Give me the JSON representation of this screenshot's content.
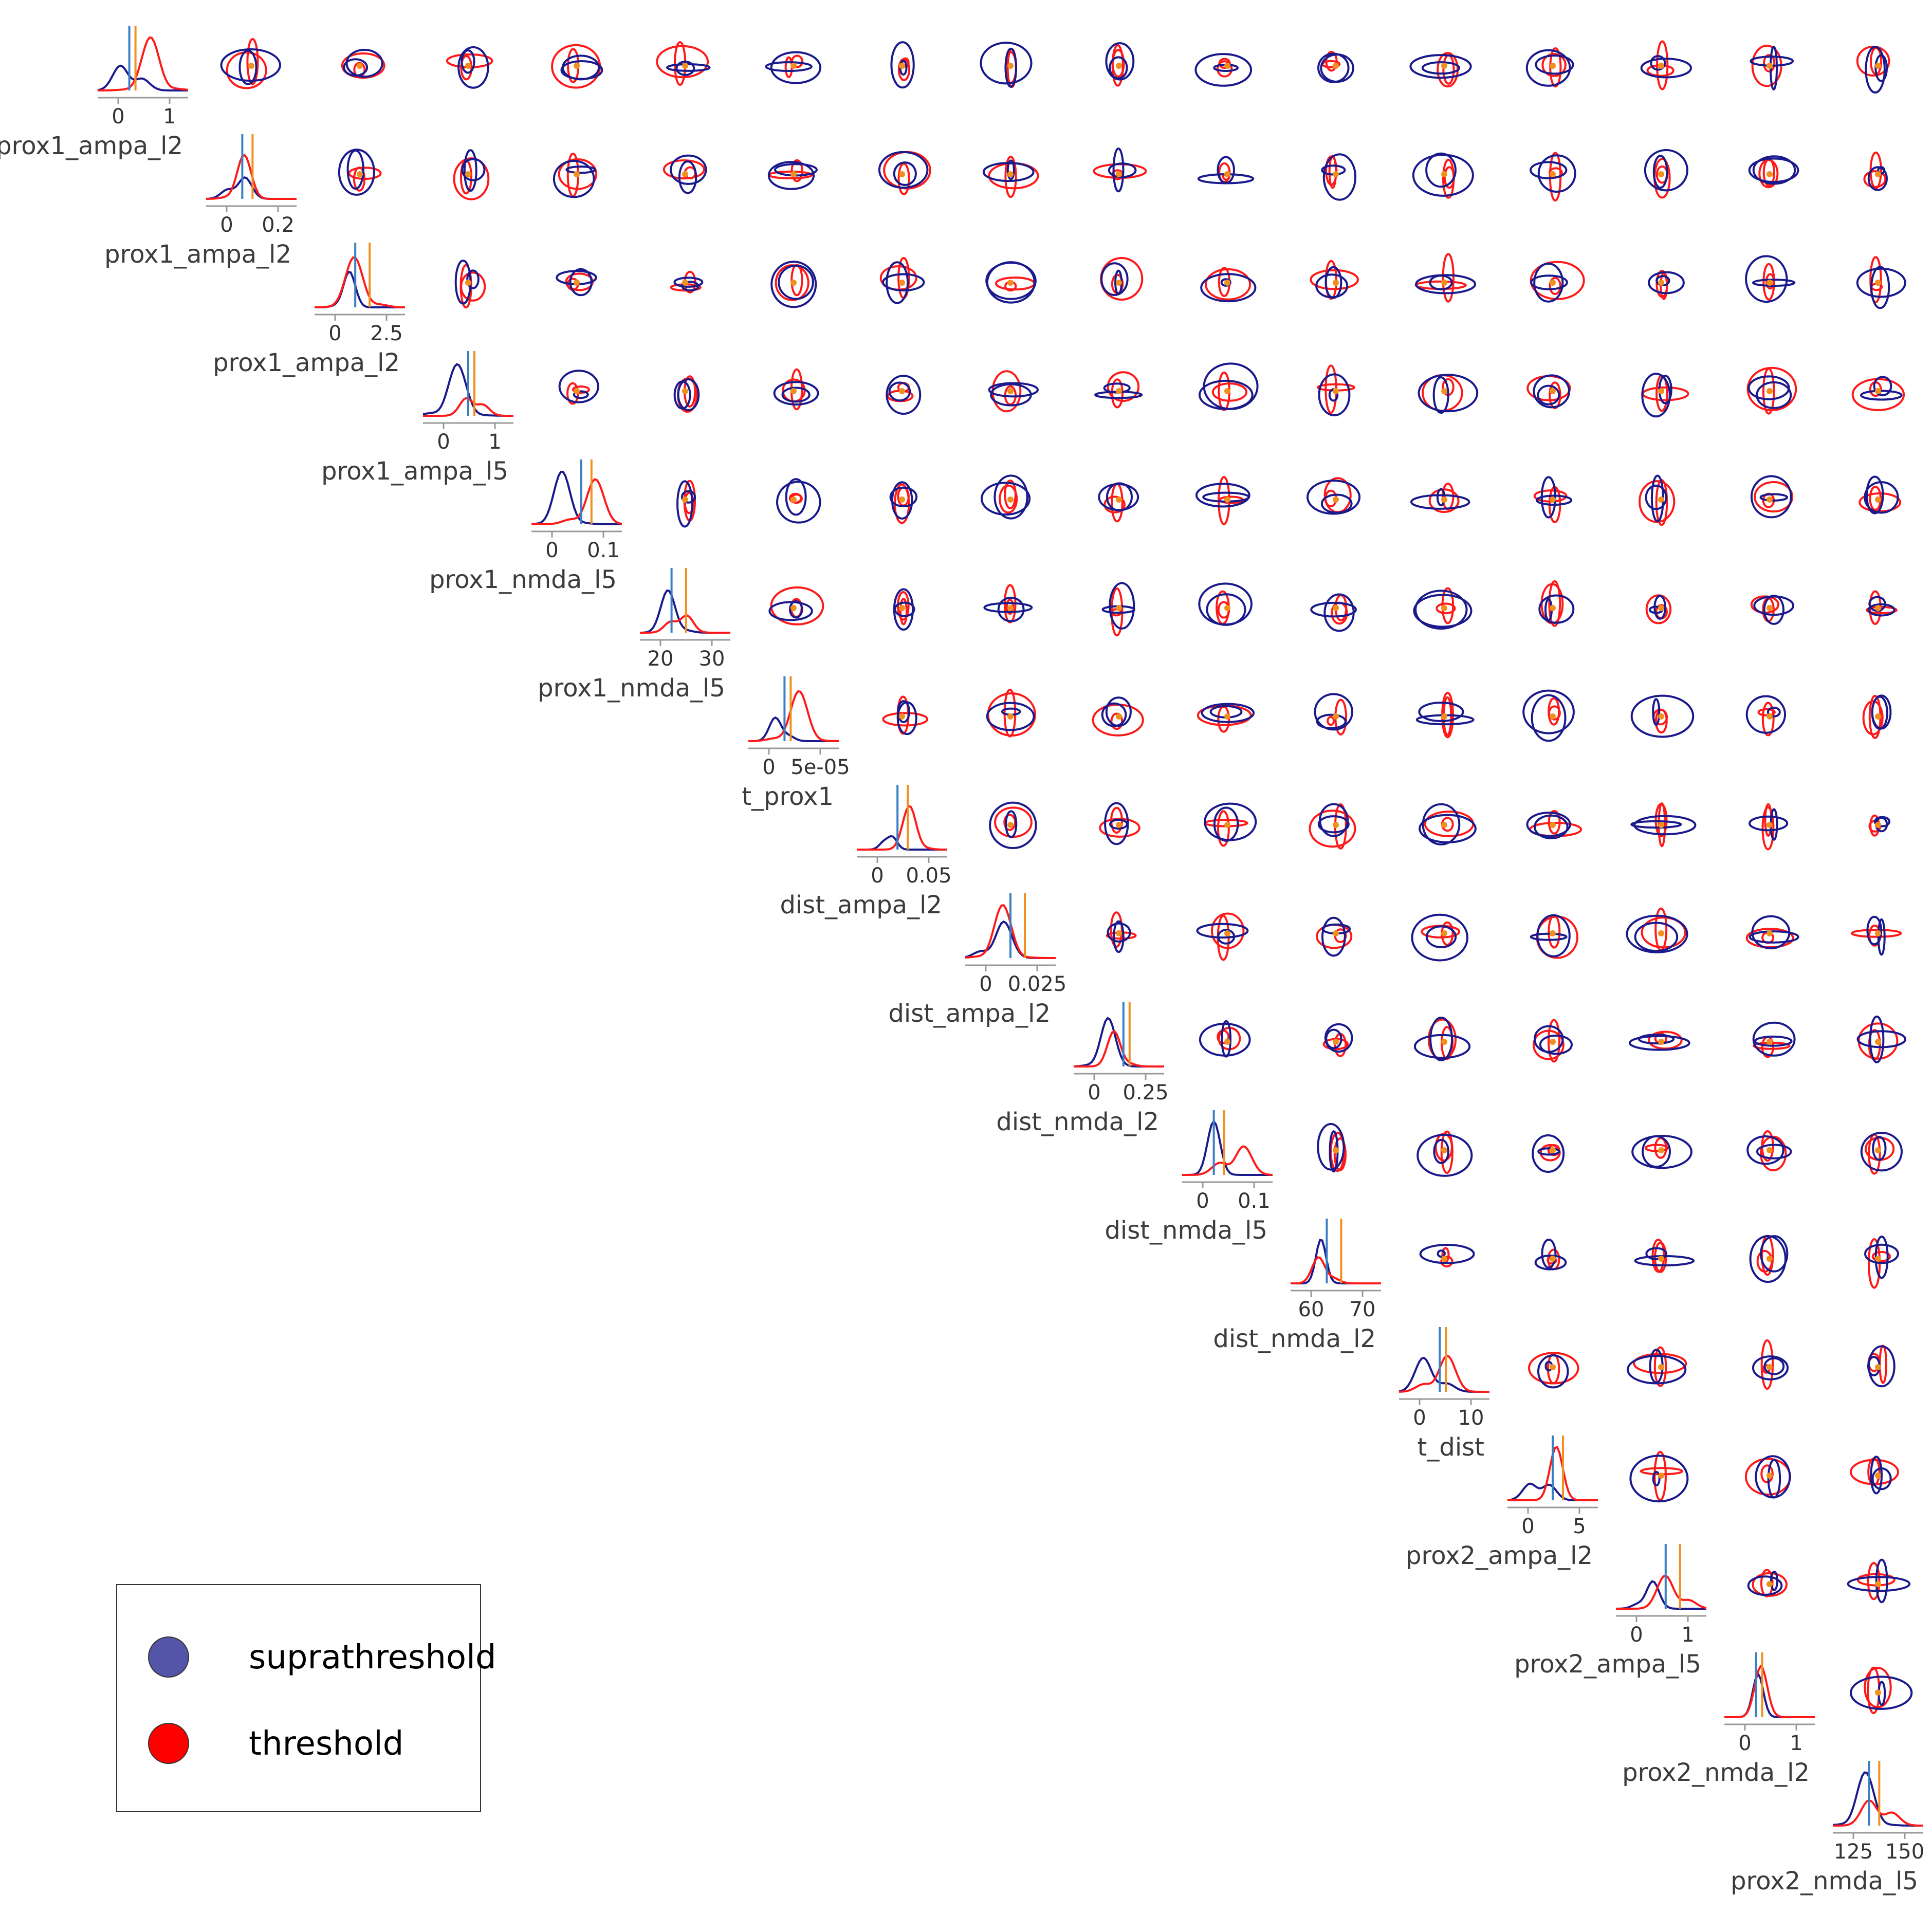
{
  "colors": {
    "suprathreshold": "#1a1a8c",
    "threshold": "#ff1a1a",
    "supra_marker": "#3a7fc4",
    "thresh_marker": "#f0901e",
    "axis": "#999999",
    "tick_text": "#333333",
    "label_text": "#3c3c3c",
    "legend_supra_fill": "#5454a8",
    "legend_thresh_fill": "#ff0000"
  },
  "legend": {
    "items": [
      {
        "label": "suprathreshold",
        "color": "#5454a8"
      },
      {
        "label": "threshold",
        "color": "#ff0000"
      }
    ]
  },
  "chart_data": {
    "type": "pairplot",
    "series": [
      {
        "name": "suprathreshold"
      },
      {
        "name": "threshold"
      }
    ],
    "diagonal": [
      {
        "label": "prox1_ampa_l2",
        "ticks": [
          "0",
          "1"
        ],
        "supra_marker": 0.02,
        "thresh_marker": 0.1
      },
      {
        "label": "prox1_ampa_l2",
        "ticks": [
          "0",
          "0.2"
        ],
        "supra_marker": 0.02,
        "thresh_marker": 0.04
      },
      {
        "label": "prox1_ampa_l2",
        "ticks": [
          "0",
          "2.5"
        ],
        "supra_marker": 1.3,
        "thresh_marker": 1.6
      },
      {
        "label": "prox1_ampa_l5",
        "ticks": [
          "0",
          "1"
        ],
        "supra_marker": 0.8,
        "thresh_marker": 0.45
      },
      {
        "label": "prox1_nmda_l5",
        "ticks": [
          "0",
          "0.1"
        ],
        "supra_marker": 0.002,
        "thresh_marker": 0.002
      },
      {
        "label": "prox1_nmda_l5",
        "ticks": [
          "20",
          "30"
        ],
        "supra_marker": 27,
        "thresh_marker": 26.5
      },
      {
        "label": "t_prox1",
        "ticks": [
          "0",
          "5e-05"
        ],
        "supra_marker": 5e-05,
        "thresh_marker": 5e-05
      },
      {
        "label": "dist_ampa_l2",
        "ticks": [
          "0",
          "0.05"
        ],
        "supra_marker": 0.025,
        "thresh_marker": 0.022
      },
      {
        "label": "dist_ampa_l2",
        "ticks": [
          "0",
          "0.025"
        ],
        "supra_marker": 0.005,
        "thresh_marker": 0.008
      },
      {
        "label": "dist_nmda_l2",
        "ticks": [
          "0",
          "0.25"
        ],
        "supra_marker": 0.17,
        "thresh_marker": 0.0
      },
      {
        "label": "dist_nmda_l5",
        "ticks": [
          "0",
          "0.1"
        ],
        "supra_marker": 0.055,
        "thresh_marker": 0.055
      },
      {
        "label": "dist_nmda_l2",
        "ticks": [
          "60",
          "70"
        ],
        "supra_marker": 61.5,
        "thresh_marker": 60.5
      },
      {
        "label": "t_dist",
        "ticks": [
          "0",
          "10"
        ],
        "supra_marker": 4,
        "thresh_marker": 4
      },
      {
        "label": "prox2_ampa_l2",
        "ticks": [
          "0",
          "5"
        ],
        "supra_marker": 0.2,
        "thresh_marker": 1.7
      },
      {
        "label": "prox2_ampa_l5",
        "ticks": [
          "0",
          "1"
        ],
        "supra_marker": 0.35,
        "thresh_marker": 0.6
      },
      {
        "label": "prox2_nmda_l2",
        "ticks": [
          "0",
          "1"
        ],
        "supra_marker": 0.0,
        "thresh_marker": 0.55
      },
      {
        "label": "prox2_nmda_l5",
        "ticks": [
          "125",
          "150"
        ],
        "supra_marker": 140,
        "thresh_marker": 128
      },
      {
        "label": "t_prox2",
        "ticks": [],
        "supra_marker": null,
        "thresh_marker": null
      }
    ]
  }
}
